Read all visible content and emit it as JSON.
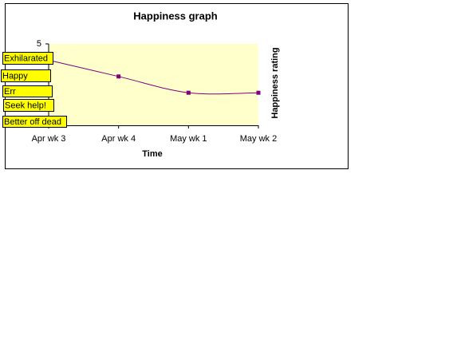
{
  "chart_data": {
    "type": "line",
    "title": "Happiness graph",
    "x_label": "Time",
    "y_label": "Happiness rating",
    "categories": [
      "Apr wk 3",
      "Apr wk 4",
      "May wk 1",
      "May wk 2"
    ],
    "values": [
      4,
      3,
      2,
      2
    ],
    "color": "#800080",
    "ylim": [
      0,
      5
    ],
    "yticks": [
      5
    ],
    "annotations": [
      "Exhilarated",
      "Happy",
      "Err",
      "Seek help!",
      "Better off dead"
    ]
  }
}
